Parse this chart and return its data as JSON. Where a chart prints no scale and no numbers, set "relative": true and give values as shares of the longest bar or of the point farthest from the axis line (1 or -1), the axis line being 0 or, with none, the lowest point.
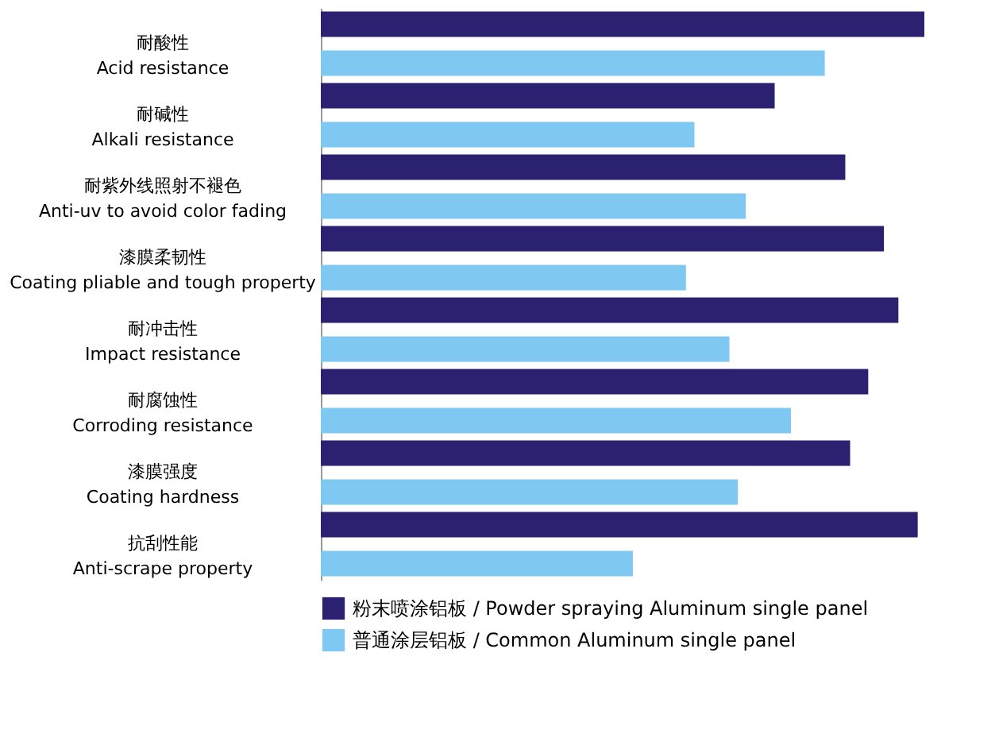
{
  "chart_data": {
    "type": "bar",
    "orientation": "horizontal",
    "relative": true,
    "legend": "bottom",
    "categories": [
      "耐酸性\nAcid resistance",
      "耐碱性\nAlkali resistance",
      "耐紫外线照射不褪色\nAnti-uv to avoid color fading",
      "漆膜柔韧性\nCoating pliable and tough property",
      "耐冲击性\nImpact resistance",
      "耐腐蚀性\nCorroding resistance",
      "漆膜强度\nCoating hardness",
      "抗刮性能\nAnti-scrape property"
    ],
    "series": [
      {
        "name": "粉末喷涂铝板 / Powder spraying Aluminum single panel",
        "color": "#2b2171",
        "values": [
          1,
          0.752,
          0.869,
          0.933,
          0.957,
          0.907,
          0.877,
          0.989
        ]
      },
      {
        "name": "普通涂层铝板 / Common Aluminum single panel",
        "color": "#7ec8f2",
        "values": [
          0.835,
          0.619,
          0.704,
          0.605,
          0.677,
          0.779,
          0.691,
          0.517
        ]
      }
    ]
  }
}
